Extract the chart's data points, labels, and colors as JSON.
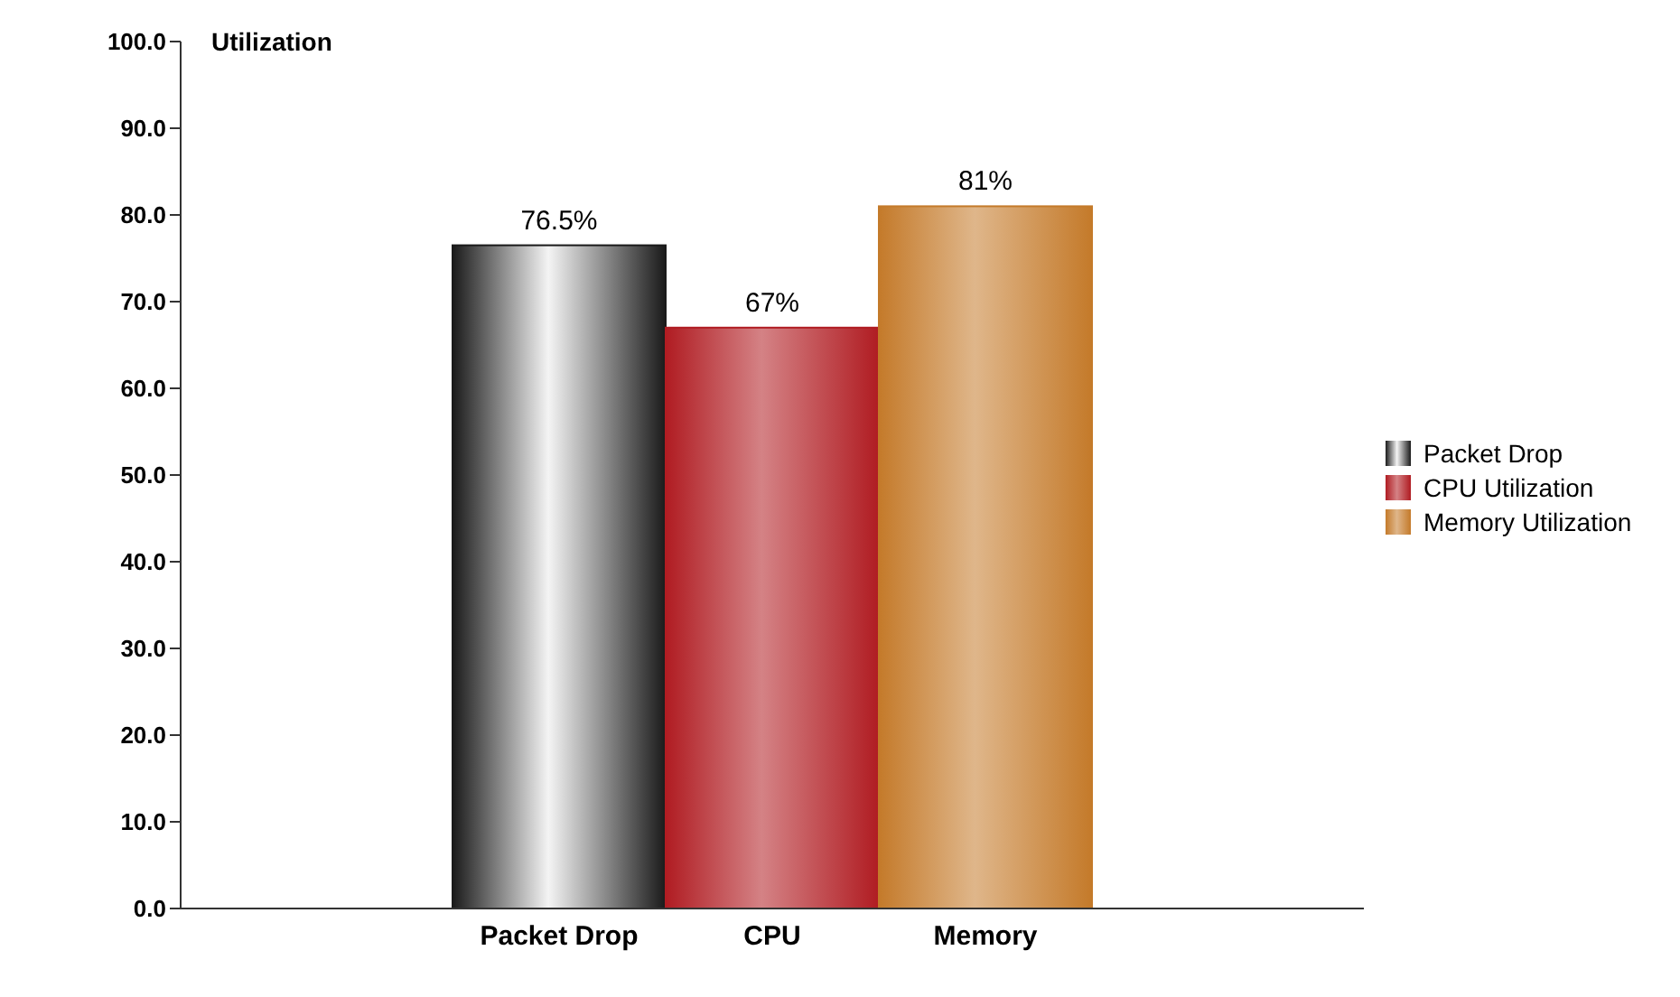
{
  "chart_data": {
    "type": "bar",
    "ylabel": "Utilization",
    "categories": [
      "Packet Drop",
      "CPU",
      "Memory"
    ],
    "series": [
      {
        "name": "Packet Drop",
        "color": "#1a1a1a",
        "values": [
          76.5,
          null,
          null
        ],
        "value_labels": [
          "76.5%",
          null,
          null
        ]
      },
      {
        "name": "CPU Utilization",
        "color": "#b01c22",
        "values": [
          null,
          67,
          null
        ],
        "value_labels": [
          null,
          "67%",
          null
        ]
      },
      {
        "name": "Memory Utilization",
        "color": "#c47a2a",
        "values": [
          null,
          null,
          81
        ],
        "value_labels": [
          null,
          null,
          "81%"
        ]
      }
    ],
    "ylim": [
      0,
      100
    ],
    "yticks": [
      {
        "value": 0,
        "label": "0.0"
      },
      {
        "value": 10,
        "label": "10.0"
      },
      {
        "value": 20,
        "label": "20.0"
      },
      {
        "value": 30,
        "label": "30.0"
      },
      {
        "value": 40,
        "label": "40.0"
      },
      {
        "value": 50,
        "label": "50.0"
      },
      {
        "value": 60,
        "label": "60.0"
      },
      {
        "value": 70,
        "label": "70.0"
      },
      {
        "value": 80,
        "label": "80.0"
      },
      {
        "value": 90,
        "label": "90.0"
      },
      {
        "value": 100,
        "label": "100.0"
      }
    ],
    "grid": false,
    "legend": "right"
  }
}
